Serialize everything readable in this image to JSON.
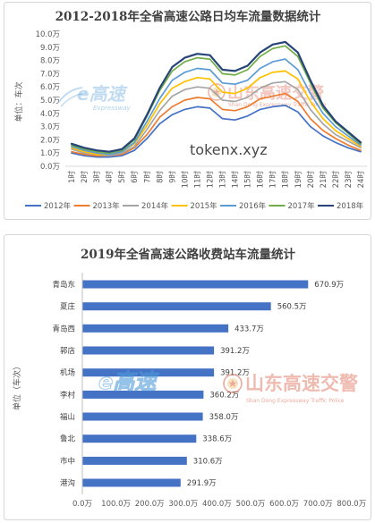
{
  "chart_data": [
    {
      "type": "line",
      "title": "2012-2018年全省高速公路日均车流量数据统计",
      "ylabel": "单位：车次",
      "categories": [
        "1时",
        "2时",
        "3时",
        "4时",
        "5时",
        "6时",
        "7时",
        "8时",
        "9时",
        "10时",
        "11时",
        "12时",
        "13时",
        "14时",
        "15时",
        "16时",
        "17时",
        "18时",
        "19时",
        "20时",
        "21时",
        "22时",
        "23时",
        "24时"
      ],
      "ylim": [
        0,
        10
      ],
      "y_ticks": [
        {
          "value": 0,
          "label": "0.0万"
        },
        {
          "value": 1,
          "label": "1.0万"
        },
        {
          "value": 2,
          "label": "2.0万"
        },
        {
          "value": 3,
          "label": "3.0万"
        },
        {
          "value": 4,
          "label": "4.0万"
        },
        {
          "value": 5,
          "label": "5.0万"
        },
        {
          "value": 6,
          "label": "6.0万"
        },
        {
          "value": 7,
          "label": "7.0万"
        },
        {
          "value": 8,
          "label": "8.0万"
        },
        {
          "value": 9,
          "label": "9.0万"
        },
        {
          "value": 10,
          "label": "10.0万"
        }
      ],
      "grid": false,
      "legend": "bottom",
      "series": [
        {
          "name": "2012年",
          "color": "#4472C4",
          "values": [
            1.0,
            0.8,
            0.7,
            0.7,
            0.8,
            1.2,
            2.1,
            3.2,
            3.9,
            4.3,
            4.5,
            4.4,
            3.6,
            3.5,
            3.8,
            4.3,
            4.5,
            4.6,
            4.1,
            3.0,
            2.3,
            1.8,
            1.4,
            1.1
          ]
        },
        {
          "name": "2013年",
          "color": "#ED7D31",
          "values": [
            1.1,
            0.9,
            0.8,
            0.8,
            0.9,
            1.4,
            2.4,
            3.7,
            4.5,
            5.0,
            5.2,
            5.1,
            4.3,
            4.2,
            4.5,
            5.1,
            5.3,
            5.5,
            4.9,
            3.6,
            2.7,
            2.1,
            1.6,
            1.2
          ]
        },
        {
          "name": "2014年",
          "color": "#A5A5A5",
          "values": [
            1.3,
            1.0,
            0.9,
            0.8,
            1.0,
            1.5,
            2.8,
            4.2,
            5.3,
            5.8,
            6.0,
            5.9,
            5.0,
            4.9,
            5.2,
            5.9,
            6.3,
            6.4,
            5.8,
            4.3,
            3.2,
            2.4,
            1.9,
            1.4
          ]
        },
        {
          "name": "2015年",
          "color": "#FFC000",
          "values": [
            1.4,
            1.1,
            0.9,
            0.9,
            1.1,
            1.7,
            3.1,
            4.7,
            5.9,
            6.4,
            6.7,
            6.6,
            5.6,
            5.5,
            5.9,
            6.7,
            7.1,
            7.2,
            6.6,
            4.9,
            3.6,
            2.7,
            2.1,
            1.5
          ]
        },
        {
          "name": "2016年",
          "color": "#5B9BD5",
          "values": [
            1.5,
            1.2,
            1.0,
            0.9,
            1.1,
            1.8,
            3.4,
            5.1,
            6.5,
            7.1,
            7.4,
            7.3,
            6.3,
            6.2,
            6.5,
            7.4,
            7.9,
            8.1,
            7.3,
            5.5,
            4.0,
            3.0,
            2.3,
            1.6
          ]
        },
        {
          "name": "2017年",
          "color": "#70AD47",
          "values": [
            1.6,
            1.3,
            1.1,
            1.0,
            1.2,
            2.0,
            3.8,
            5.7,
            7.2,
            7.9,
            8.2,
            8.1,
            7.0,
            6.9,
            7.3,
            8.3,
            8.9,
            9.1,
            8.3,
            6.3,
            4.4,
            3.3,
            2.5,
            1.7
          ]
        },
        {
          "name": "2018年",
          "color": "#264478",
          "values": [
            1.7,
            1.4,
            1.2,
            1.1,
            1.3,
            2.1,
            3.9,
            5.9,
            7.5,
            8.2,
            8.5,
            8.4,
            7.3,
            7.2,
            7.6,
            8.6,
            9.2,
            9.4,
            8.6,
            6.5,
            4.6,
            3.4,
            2.6,
            1.8
          ]
        }
      ]
    },
    {
      "type": "bar",
      "orientation": "horizontal",
      "title": "2019年全省高速公路收费站车流量统计",
      "ylabel": "单位（车次）",
      "categories": [
        "青岛东",
        "夏庄",
        "青岛西",
        "郭店",
        "机场",
        "李村",
        "福山",
        "鲁北",
        "市中",
        "港沟"
      ],
      "values": [
        670.9,
        560.5,
        433.7,
        391.2,
        391.2,
        360.2,
        358.0,
        338.6,
        310.6,
        291.9
      ],
      "data_labels": [
        "670.9万",
        "560.5万",
        "433.7万",
        "391.2万",
        "391.2万",
        "360.2万",
        "358.0万",
        "338.6万",
        "310.6万",
        "291.9万"
      ],
      "xlim": [
        0,
        800
      ],
      "x_ticks": [
        {
          "value": 0,
          "label": "0.0万"
        },
        {
          "value": 100,
          "label": "100.0万"
        },
        {
          "value": 200,
          "label": "200.0万"
        },
        {
          "value": 300,
          "label": "300.0万"
        },
        {
          "value": 400,
          "label": "400.0万"
        },
        {
          "value": 500,
          "label": "500.0万"
        },
        {
          "value": 600,
          "label": "600.0万"
        },
        {
          "value": 700,
          "label": "700.0万"
        },
        {
          "value": 800,
          "label": "800.0万"
        }
      ],
      "color": "#4472C4",
      "grid": false,
      "legend": "none"
    }
  ],
  "watermarks": {
    "top": {
      "brand": "e高速",
      "brand_sub": "Expressway",
      "police": "山东高速交警",
      "police_sub": "Shan Dong Expressway Traffic Police",
      "site": "tokenx.xyz"
    },
    "bottom": {
      "brand": "e高速",
      "police": "山东高速交警",
      "police_sub": "Shan Dong Expressway Traffic Police"
    },
    "brand_color": "#4f9bd9",
    "police_color": "#d9553c"
  }
}
